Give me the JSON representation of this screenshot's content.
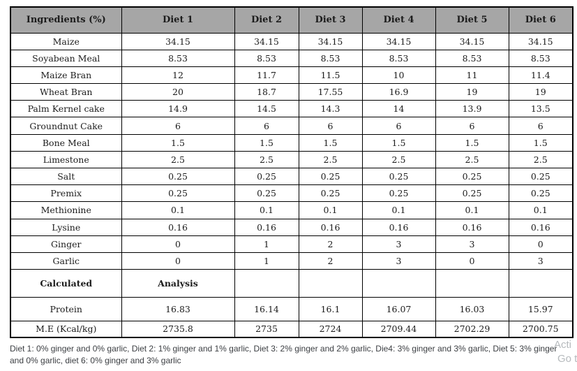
{
  "colors": {
    "header_bg": "#a6a6a6",
    "border": "#000000",
    "table_text": "#1c1c1c",
    "caption_text": "#3b3e42",
    "watermark_text": "#b6babd"
  },
  "table": {
    "header": [
      "Ingredients (%)",
      "Diet 1",
      "Diet 2",
      "Diet 3",
      "Diet 4",
      "Diet 5",
      "Diet 6"
    ],
    "rows": [
      {
        "label": "Maize",
        "values": [
          "34.15",
          "34.15",
          "34.15",
          "34.15",
          "34.15",
          "34.15"
        ]
      },
      {
        "label": "Soyabean Meal",
        "values": [
          "8.53",
          "8.53",
          "8.53",
          "8.53",
          "8.53",
          "8.53"
        ]
      },
      {
        "label": "Maize Bran",
        "values": [
          "12",
          "11.7",
          "11.5",
          "10",
          "11",
          "11.4"
        ]
      },
      {
        "label": "Wheat Bran",
        "values": [
          "20",
          "18.7",
          "17.55",
          "16.9",
          "19",
          "19"
        ]
      },
      {
        "label": "Palm Kernel cake",
        "values": [
          "14.9",
          "14.5",
          "14.3",
          "14",
          "13.9",
          "13.5"
        ]
      },
      {
        "label": "Groundnut Cake",
        "values": [
          "6",
          "6",
          "6",
          "6",
          "6",
          "6"
        ]
      },
      {
        "label": "Bone Meal",
        "values": [
          "1.5",
          "1.5",
          "1.5",
          "1.5",
          "1.5",
          "1.5"
        ]
      },
      {
        "label": "Limestone",
        "values": [
          "2.5",
          "2.5",
          "2.5",
          "2.5",
          "2.5",
          "2.5"
        ]
      },
      {
        "label": "Salt",
        "values": [
          "0.25",
          "0.25",
          "0.25",
          "0.25",
          "0.25",
          "0.25"
        ]
      },
      {
        "label": "Premix",
        "values": [
          "0.25",
          "0.25",
          "0.25",
          "0.25",
          "0.25",
          "0.25"
        ]
      },
      {
        "label": "Methionine",
        "values": [
          "0.1",
          "0.1",
          "0.1",
          "0.1",
          "0.1",
          "0.1"
        ]
      },
      {
        "label": "Lysine",
        "values": [
          "0.16",
          "0.16",
          "0.16",
          "0.16",
          "0.16",
          "0.16"
        ]
      },
      {
        "label": "Ginger",
        "values": [
          "0",
          "1",
          "2",
          "3",
          "3",
          "0"
        ]
      },
      {
        "label": "Garlic",
        "values": [
          "0",
          "1",
          "2",
          "3",
          "0",
          "3"
        ]
      },
      {
        "label": "Calculated",
        "values": [
          "Analysis",
          "",
          "",
          "",
          "",
          ""
        ],
        "kind": "calculated"
      },
      {
        "label": "Protein",
        "values": [
          "16.83",
          "16.14",
          "16.1",
          "16.07",
          "16.03",
          "15.97"
        ],
        "kind": "protein"
      },
      {
        "label": "M.E (Kcal/kg)",
        "values": [
          "2735.8",
          "2735",
          "2724",
          "2709.44",
          "2702.29",
          "2700.75"
        ],
        "kind": "me"
      }
    ]
  },
  "footnote": {
    "line1": "Diet 1: 0% ginger and 0% garlic, Diet 2: 1% ginger and 1% garlic, Diet 3: 2% ginger and 2% garlic, Die4: 3% ginger and 3% garlic, Diet 5: 3% ginger",
    "line2": "and 0% garlic, diet 6: 0% ginger and 3% garlic"
  },
  "watermark": {
    "line1": "Acti",
    "line2": "Go to"
  }
}
